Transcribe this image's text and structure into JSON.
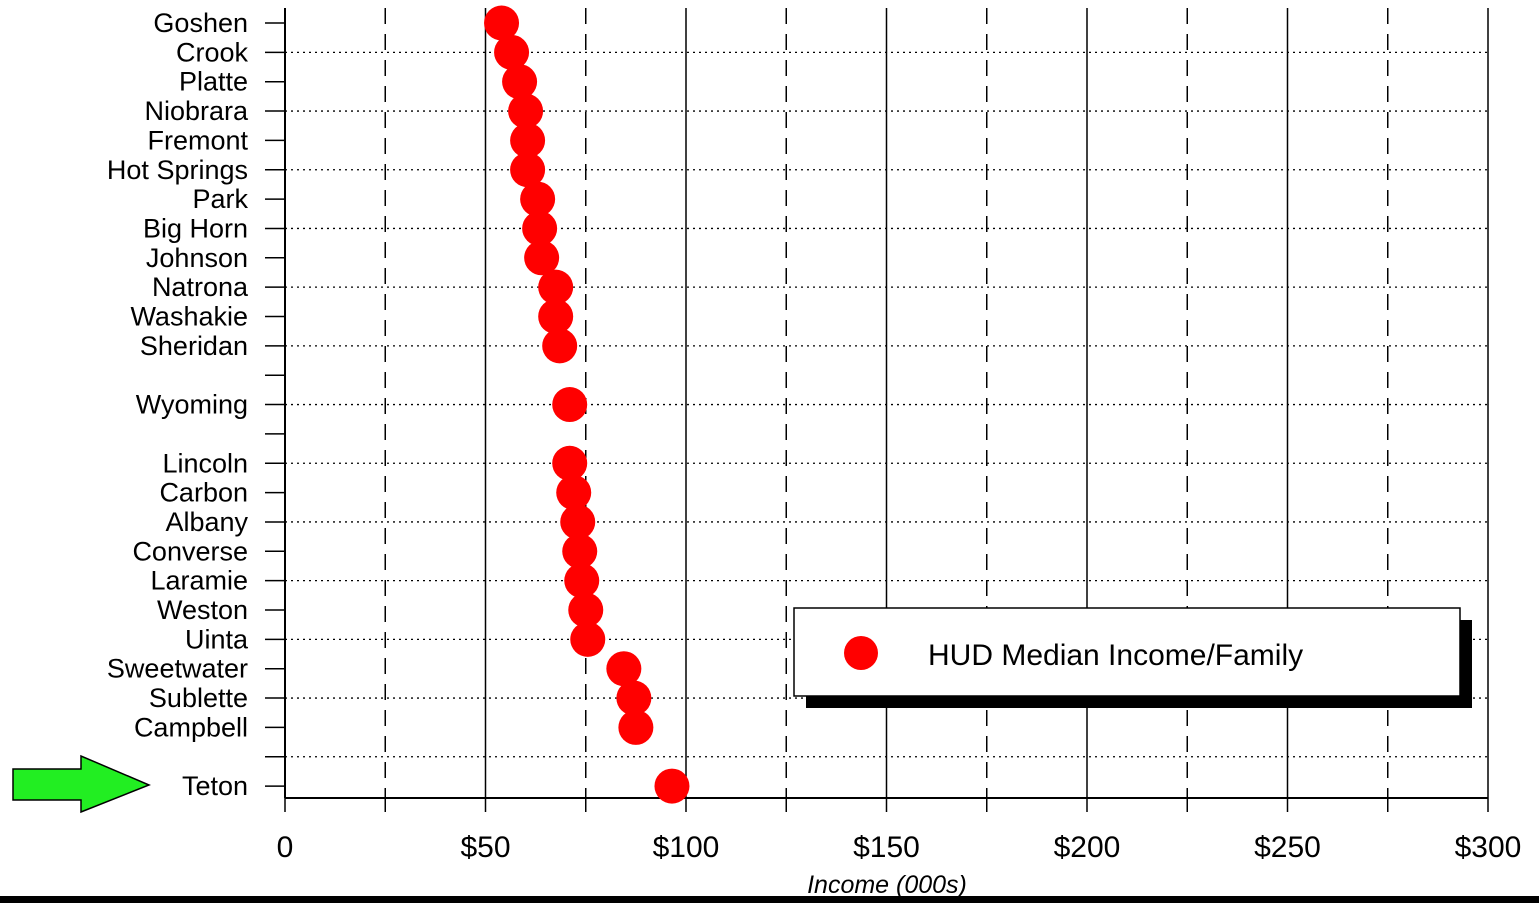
{
  "chart_data": {
    "type": "scatter",
    "xlabel": "Income (000s)",
    "xlim": [
      0,
      300
    ],
    "x_ticks": [
      {
        "value": 0,
        "label": "0"
      },
      {
        "value": 50,
        "label": "$50"
      },
      {
        "value": 100,
        "label": "$100"
      },
      {
        "value": 150,
        "label": "$150"
      },
      {
        "value": 200,
        "label": "$200"
      },
      {
        "value": 250,
        "label": "$250"
      },
      {
        "value": 300,
        "label": "$300"
      }
    ],
    "grid": {
      "vertical": true,
      "horizontal": "dotted"
    },
    "legend": {
      "position": "bottom-right",
      "entries": [
        "HUD Median Income/Family"
      ]
    },
    "series": [
      {
        "name": "HUD Median Income/Family",
        "color": "#ff0000",
        "points": [
          {
            "category": "Goshen",
            "value": 54
          },
          {
            "category": "Crook",
            "value": 56.5
          },
          {
            "category": "Platte",
            "value": 58.5
          },
          {
            "category": "Niobrara",
            "value": 60
          },
          {
            "category": "Fremont",
            "value": 60.5
          },
          {
            "category": "Hot Springs",
            "value": 60.5
          },
          {
            "category": "Park",
            "value": 63
          },
          {
            "category": "Big Horn",
            "value": 63.5
          },
          {
            "category": "Johnson",
            "value": 64
          },
          {
            "category": "Natrona",
            "value": 67.5
          },
          {
            "category": "Washakie",
            "value": 67.5
          },
          {
            "category": "Sheridan",
            "value": 68.5
          },
          {
            "category": "",
            "value": null
          },
          {
            "category": "Wyoming",
            "value": 71
          },
          {
            "category": "",
            "value": null
          },
          {
            "category": "Lincoln",
            "value": 71
          },
          {
            "category": "Carbon",
            "value": 72
          },
          {
            "category": "Albany",
            "value": 73
          },
          {
            "category": "Converse",
            "value": 73.5
          },
          {
            "category": "Laramie",
            "value": 74
          },
          {
            "category": "Weston",
            "value": 75
          },
          {
            "category": "Uinta",
            "value": 75.5
          },
          {
            "category": "Sweetwater",
            "value": 84.5
          },
          {
            "category": "Sublette",
            "value": 87
          },
          {
            "category": "Campbell",
            "value": 87.5
          },
          {
            "category": "",
            "value": null
          },
          {
            "category": "Teton",
            "value": 96.5
          }
        ]
      }
    ],
    "highlight": {
      "category": "Teton",
      "marker": "green-arrow",
      "color": "#22ee22"
    }
  }
}
